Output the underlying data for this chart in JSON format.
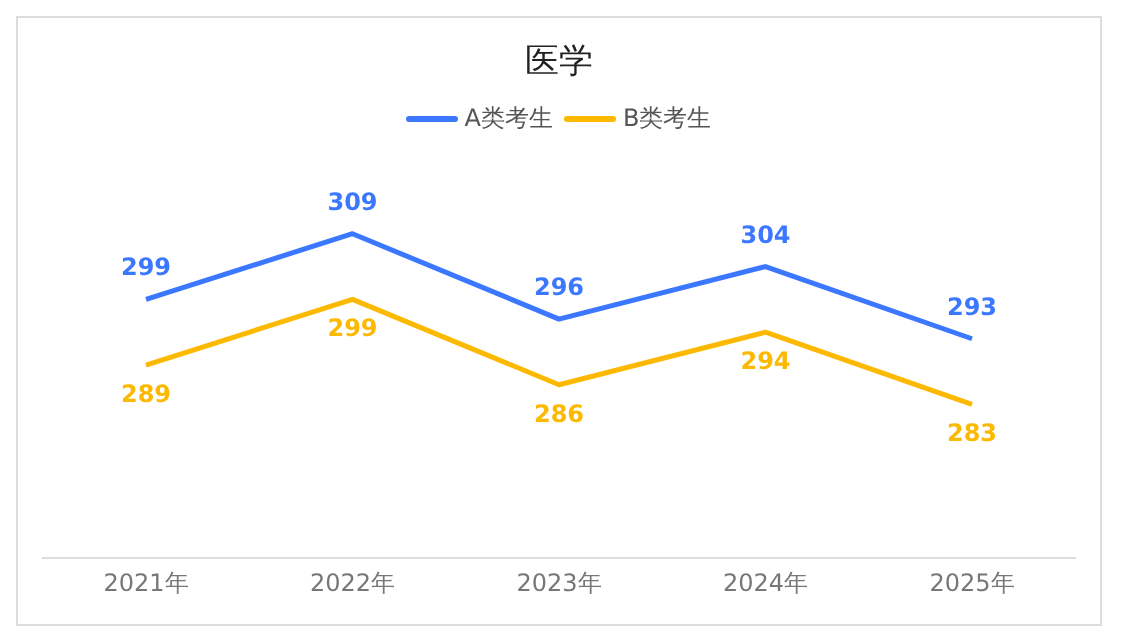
{
  "chart_data": {
    "type": "line",
    "title": "医学",
    "categories": [
      "2021年",
      "2022年",
      "2023年",
      "2024年",
      "2025年"
    ],
    "series": [
      {
        "name": "A类考生",
        "color": "#3b78ff",
        "values": [
          299,
          309,
          296,
          304,
          293
        ]
      },
      {
        "name": "B类考生",
        "color": "#fcb900",
        "values": [
          289,
          299,
          286,
          294,
          283
        ]
      }
    ],
    "tick_labels": "x",
    "legend": "top",
    "marker": "none",
    "data_labels": true
  }
}
